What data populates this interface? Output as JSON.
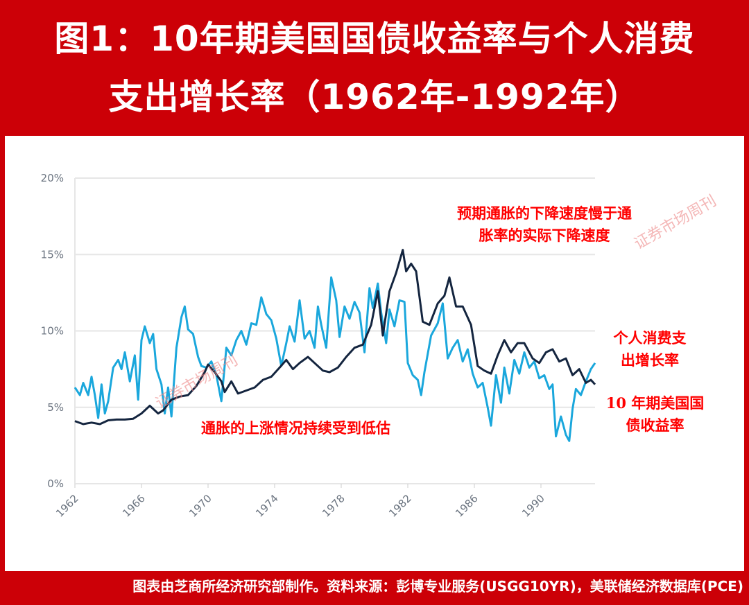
{
  "title": {
    "line1": "图1：10年期美国国债收益率与个人消费",
    "line2": "支出增长率（1962年-1992年）"
  },
  "footer": "图表由芝商所经济研究部制作。资料来源：彭博专业服务(USGG10YR)，美联储经济数据库(PCE)",
  "watermark": "证券市场周刊",
  "annotations": {
    "top": "预期通胀的下降速度慢于通胀率的实际下降速度",
    "top_l1": "预期通胀的下降速度慢于通",
    "top_l2": "胀率的实际下降速度",
    "bottom": "通胀的上涨情况持续受到低估",
    "pce_l1": "个人消费支",
    "pce_l2": "出增长率",
    "yield_l1": "10 年期美国国",
    "yield_l2": "债收益率"
  },
  "chart_data": {
    "type": "line",
    "ylim": [
      0,
      20
    ],
    "xlim": [
      1962,
      1993.25
    ],
    "yticks": [
      "0%",
      "5%",
      "10%",
      "15%",
      "20%"
    ],
    "xticks": [
      "1962",
      "1966",
      "1970",
      "1974",
      "1978",
      "1982",
      "1986",
      "1990"
    ],
    "grid": true,
    "colors": {
      "yield": "#14253f",
      "pce": "#1aa7dc"
    },
    "series": [
      {
        "name": "10 年期美国国债收益率",
        "key": "yield",
        "points": [
          [
            1962,
            4.1
          ],
          [
            1962.5,
            3.9
          ],
          [
            1963,
            4.0
          ],
          [
            1963.5,
            3.9
          ],
          [
            1964,
            4.15
          ],
          [
            1964.5,
            4.2
          ],
          [
            1965,
            4.2
          ],
          [
            1965.5,
            4.25
          ],
          [
            1966,
            4.6
          ],
          [
            1966.5,
            5.1
          ],
          [
            1967,
            4.6
          ],
          [
            1967.3,
            4.8
          ],
          [
            1967.8,
            5.5
          ],
          [
            1968.3,
            5.7
          ],
          [
            1968.8,
            5.8
          ],
          [
            1969.3,
            6.4
          ],
          [
            1969.8,
            7.3
          ],
          [
            1970,
            7.8
          ],
          [
            1970.4,
            7.3
          ],
          [
            1970.8,
            6.7
          ],
          [
            1971,
            6.0
          ],
          [
            1971.4,
            6.7
          ],
          [
            1971.8,
            5.9
          ],
          [
            1972.3,
            6.1
          ],
          [
            1972.8,
            6.3
          ],
          [
            1973.3,
            6.8
          ],
          [
            1973.8,
            7.0
          ],
          [
            1974.3,
            7.6
          ],
          [
            1974.7,
            8.1
          ],
          [
            1975.1,
            7.5
          ],
          [
            1975.5,
            7.9
          ],
          [
            1976,
            8.3
          ],
          [
            1976.4,
            7.9
          ],
          [
            1976.9,
            7.4
          ],
          [
            1977.3,
            7.3
          ],
          [
            1977.8,
            7.6
          ],
          [
            1978.3,
            8.3
          ],
          [
            1978.8,
            8.9
          ],
          [
            1979.3,
            9.1
          ],
          [
            1979.8,
            10.4
          ],
          [
            1980.2,
            12.6
          ],
          [
            1980.5,
            9.7
          ],
          [
            1980.9,
            12.6
          ],
          [
            1981.3,
            13.8
          ],
          [
            1981.7,
            15.3
          ],
          [
            1981.9,
            13.9
          ],
          [
            1982.2,
            14.4
          ],
          [
            1982.5,
            13.9
          ],
          [
            1982.9,
            10.6
          ],
          [
            1983.3,
            10.4
          ],
          [
            1983.8,
            11.8
          ],
          [
            1984.2,
            12.3
          ],
          [
            1984.5,
            13.5
          ],
          [
            1984.9,
            11.6
          ],
          [
            1985.3,
            11.6
          ],
          [
            1985.8,
            10.4
          ],
          [
            1986.2,
            7.7
          ],
          [
            1986.6,
            7.4
          ],
          [
            1987,
            7.2
          ],
          [
            1987.4,
            8.4
          ],
          [
            1987.8,
            9.4
          ],
          [
            1988.2,
            8.6
          ],
          [
            1988.6,
            9.2
          ],
          [
            1989,
            9.2
          ],
          [
            1989.5,
            8.2
          ],
          [
            1989.9,
            7.9
          ],
          [
            1990.3,
            8.6
          ],
          [
            1990.7,
            8.8
          ],
          [
            1991.1,
            8.0
          ],
          [
            1991.5,
            8.2
          ],
          [
            1991.9,
            7.1
          ],
          [
            1992.3,
            7.5
          ],
          [
            1992.7,
            6.6
          ],
          [
            1993,
            6.8
          ],
          [
            1993.25,
            6.5
          ]
        ]
      },
      {
        "name": "个人消费支出增长率",
        "key": "pce",
        "points": [
          [
            1962,
            6.3
          ],
          [
            1962.3,
            5.8
          ],
          [
            1962.5,
            6.6
          ],
          [
            1962.8,
            5.8
          ],
          [
            1963,
            7.0
          ],
          [
            1963.2,
            5.8
          ],
          [
            1963.4,
            4.3
          ],
          [
            1963.6,
            6.5
          ],
          [
            1963.8,
            4.6
          ],
          [
            1964,
            5.4
          ],
          [
            1964.3,
            7.6
          ],
          [
            1964.6,
            8.1
          ],
          [
            1964.8,
            7.5
          ],
          [
            1965,
            8.6
          ],
          [
            1965.3,
            6.7
          ],
          [
            1965.6,
            8.4
          ],
          [
            1965.8,
            5.5
          ],
          [
            1966,
            9.4
          ],
          [
            1966.2,
            10.3
          ],
          [
            1966.5,
            9.2
          ],
          [
            1966.7,
            9.8
          ],
          [
            1966.9,
            7.5
          ],
          [
            1967.2,
            6.5
          ],
          [
            1967.4,
            4.6
          ],
          [
            1967.6,
            6.3
          ],
          [
            1967.8,
            4.4
          ],
          [
            1968.1,
            8.9
          ],
          [
            1968.4,
            10.9
          ],
          [
            1968.6,
            11.6
          ],
          [
            1968.8,
            10.1
          ],
          [
            1969.1,
            9.8
          ],
          [
            1969.4,
            8.3
          ],
          [
            1969.6,
            7.7
          ],
          [
            1969.9,
            7.6
          ],
          [
            1970.2,
            8.0
          ],
          [
            1970.5,
            7.1
          ],
          [
            1970.8,
            5.4
          ],
          [
            1971.1,
            8.9
          ],
          [
            1971.4,
            8.4
          ],
          [
            1971.7,
            9.4
          ],
          [
            1972,
            10.0
          ],
          [
            1972.3,
            9.1
          ],
          [
            1972.6,
            10.5
          ],
          [
            1972.9,
            10.4
          ],
          [
            1973.2,
            12.2
          ],
          [
            1973.5,
            11.1
          ],
          [
            1973.8,
            10.7
          ],
          [
            1974.1,
            9.5
          ],
          [
            1974.4,
            7.7
          ],
          [
            1974.7,
            9.2
          ],
          [
            1974.9,
            10.3
          ],
          [
            1975.2,
            9.3
          ],
          [
            1975.5,
            12.0
          ],
          [
            1975.8,
            9.5
          ],
          [
            1976.1,
            10.0
          ],
          [
            1976.4,
            8.9
          ],
          [
            1976.6,
            11.6
          ],
          [
            1976.8,
            10.4
          ],
          [
            1977.1,
            8.9
          ],
          [
            1977.4,
            13.5
          ],
          [
            1977.7,
            12.0
          ],
          [
            1977.9,
            9.6
          ],
          [
            1978.2,
            11.6
          ],
          [
            1978.5,
            10.8
          ],
          [
            1978.8,
            11.9
          ],
          [
            1979.1,
            11.2
          ],
          [
            1979.4,
            8.6
          ],
          [
            1979.7,
            12.8
          ],
          [
            1979.9,
            11.5
          ],
          [
            1980.2,
            13.1
          ],
          [
            1980.4,
            11.2
          ],
          [
            1980.7,
            9.2
          ],
          [
            1980.9,
            11.4
          ],
          [
            1981.2,
            10.3
          ],
          [
            1981.5,
            12.0
          ],
          [
            1981.8,
            11.9
          ],
          [
            1982,
            7.9
          ],
          [
            1982.3,
            7.1
          ],
          [
            1982.6,
            6.8
          ],
          [
            1982.8,
            5.8
          ],
          [
            1983,
            7.3
          ],
          [
            1983.4,
            9.7
          ],
          [
            1983.8,
            10.5
          ],
          [
            1984.1,
            11.8
          ],
          [
            1984.4,
            8.2
          ],
          [
            1984.7,
            8.9
          ],
          [
            1985,
            9.4
          ],
          [
            1985.3,
            8.0
          ],
          [
            1985.6,
            8.8
          ],
          [
            1985.9,
            7.2
          ],
          [
            1986.2,
            6.3
          ],
          [
            1986.5,
            6.6
          ],
          [
            1986.8,
            5.0
          ],
          [
            1987,
            3.8
          ],
          [
            1987.3,
            7.1
          ],
          [
            1987.6,
            5.3
          ],
          [
            1987.8,
            7.6
          ],
          [
            1988.1,
            5.9
          ],
          [
            1988.4,
            8.1
          ],
          [
            1988.7,
            7.2
          ],
          [
            1989,
            8.6
          ],
          [
            1989.3,
            7.6
          ],
          [
            1989.6,
            8.0
          ],
          [
            1989.9,
            6.9
          ],
          [
            1990.2,
            7.1
          ],
          [
            1990.5,
            6.2
          ],
          [
            1990.7,
            6.5
          ],
          [
            1990.9,
            3.1
          ],
          [
            1991.2,
            4.4
          ],
          [
            1991.5,
            3.2
          ],
          [
            1991.7,
            2.8
          ],
          [
            1991.9,
            4.9
          ],
          [
            1992.1,
            6.2
          ],
          [
            1992.4,
            5.8
          ],
          [
            1992.7,
            6.7
          ],
          [
            1993,
            7.5
          ],
          [
            1993.25,
            7.9
          ]
        ]
      }
    ]
  }
}
